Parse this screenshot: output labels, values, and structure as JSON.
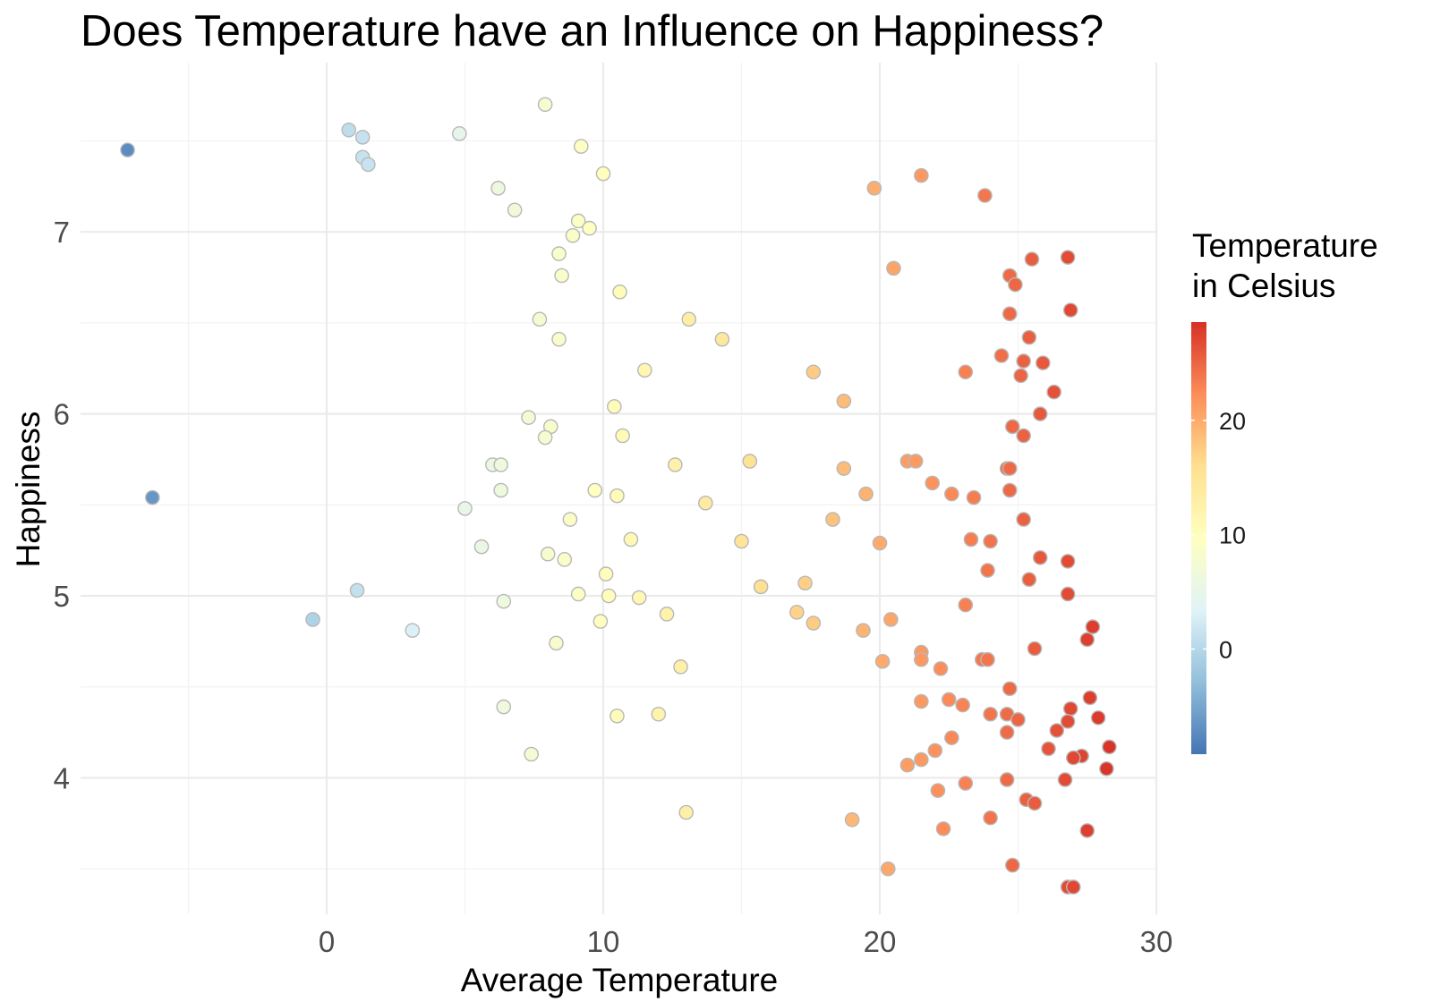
{
  "chart_data": {
    "type": "scatter",
    "title": "Does Temperature have an Influence on Happiness?",
    "xlabel": "Average Temperature",
    "ylabel": "Happiness",
    "xlim": [
      -8.9,
      30
    ],
    "ylim": [
      3.25,
      7.93
    ],
    "x_ticks": [
      0,
      10,
      20,
      30
    ],
    "y_ticks": [
      4,
      5,
      6,
      7
    ],
    "grid": true,
    "legend": {
      "title_lines": [
        "Temperature",
        "in Celsius"
      ],
      "placement": "right",
      "type": "colorbar",
      "range": [
        -9.2,
        28.6
      ],
      "ticks": [
        0,
        10,
        20
      ],
      "colors": [
        "#4575b4",
        "#91bfdb",
        "#e0f3f8",
        "#ffffbf",
        "#fee090",
        "#fc8d59",
        "#d73027"
      ]
    },
    "points": [
      [
        -7.2,
        7.45
      ],
      [
        -6.3,
        5.54
      ],
      [
        -0.5,
        4.87
      ],
      [
        0.8,
        7.56
      ],
      [
        1.3,
        7.52
      ],
      [
        1.3,
        7.41
      ],
      [
        1.5,
        7.37
      ],
      [
        1.1,
        5.03
      ],
      [
        3.1,
        4.81
      ],
      [
        4.8,
        7.54
      ],
      [
        7.9,
        7.7
      ],
      [
        9.2,
        7.47
      ],
      [
        10.0,
        7.32
      ],
      [
        6.2,
        7.24
      ],
      [
        6.8,
        7.12
      ],
      [
        9.1,
        7.06
      ],
      [
        9.5,
        7.02
      ],
      [
        8.9,
        6.98
      ],
      [
        8.4,
        6.88
      ],
      [
        8.5,
        6.76
      ],
      [
        10.6,
        6.67
      ],
      [
        7.7,
        6.52
      ],
      [
        8.4,
        6.41
      ],
      [
        13.1,
        6.52
      ],
      [
        14.3,
        6.41
      ],
      [
        11.5,
        6.24
      ],
      [
        17.6,
        6.23
      ],
      [
        18.7,
        6.07
      ],
      [
        10.4,
        6.04
      ],
      [
        7.3,
        5.98
      ],
      [
        8.1,
        5.93
      ],
      [
        7.9,
        5.87
      ],
      [
        10.7,
        5.88
      ],
      [
        6.0,
        5.72
      ],
      [
        6.3,
        5.72
      ],
      [
        12.6,
        5.72
      ],
      [
        15.3,
        5.74
      ],
      [
        18.7,
        5.7
      ],
      [
        21.0,
        5.74
      ],
      [
        21.3,
        5.74
      ],
      [
        6.3,
        5.58
      ],
      [
        9.7,
        5.58
      ],
      [
        10.5,
        5.55
      ],
      [
        13.7,
        5.51
      ],
      [
        5.0,
        5.48
      ],
      [
        8.8,
        5.42
      ],
      [
        19.5,
        5.56
      ],
      [
        21.9,
        5.62
      ],
      [
        22.6,
        5.56
      ],
      [
        23.4,
        5.54
      ],
      [
        18.3,
        5.42
      ],
      [
        5.6,
        5.27
      ],
      [
        8.0,
        5.23
      ],
      [
        8.6,
        5.2
      ],
      [
        11.0,
        5.31
      ],
      [
        15.0,
        5.3
      ],
      [
        20.0,
        5.29
      ],
      [
        23.3,
        5.31
      ],
      [
        24.0,
        5.3
      ],
      [
        23.9,
        5.14
      ],
      [
        10.1,
        5.12
      ],
      [
        6.4,
        4.97
      ],
      [
        9.1,
        5.01
      ],
      [
        10.2,
        5.0
      ],
      [
        11.3,
        4.99
      ],
      [
        9.9,
        4.86
      ],
      [
        12.3,
        4.9
      ],
      [
        15.7,
        5.05
      ],
      [
        17.3,
        5.07
      ],
      [
        17.0,
        4.91
      ],
      [
        17.6,
        4.85
      ],
      [
        20.4,
        4.87
      ],
      [
        23.1,
        4.95
      ],
      [
        8.3,
        4.74
      ],
      [
        19.4,
        4.81
      ],
      [
        20.1,
        4.64
      ],
      [
        21.5,
        4.69
      ],
      [
        21.5,
        4.65
      ],
      [
        22.2,
        4.6
      ],
      [
        23.7,
        4.65
      ],
      [
        23.9,
        4.65
      ],
      [
        12.8,
        4.61
      ],
      [
        6.4,
        4.39
      ],
      [
        10.5,
        4.34
      ],
      [
        12.0,
        4.35
      ],
      [
        7.4,
        4.13
      ],
      [
        21.5,
        4.42
      ],
      [
        22.5,
        4.43
      ],
      [
        23.0,
        4.4
      ],
      [
        24.7,
        4.49
      ],
      [
        24.0,
        4.35
      ],
      [
        24.6,
        4.35
      ],
      [
        25.0,
        4.32
      ],
      [
        22.6,
        4.22
      ],
      [
        21.5,
        4.1
      ],
      [
        22.0,
        4.15
      ],
      [
        21.0,
        4.07
      ],
      [
        24.6,
        4.25
      ],
      [
        22.1,
        3.93
      ],
      [
        23.1,
        3.97
      ],
      [
        24.6,
        3.99
      ],
      [
        22.3,
        3.72
      ],
      [
        24.0,
        3.78
      ],
      [
        13.0,
        3.81
      ],
      [
        19.0,
        3.77
      ],
      [
        20.3,
        3.5
      ],
      [
        24.8,
        3.52
      ],
      [
        25.3,
        3.88
      ],
      [
        25.6,
        3.86
      ],
      [
        25.5,
        6.85
      ],
      [
        24.7,
        6.76
      ],
      [
        24.9,
        6.71
      ],
      [
        24.7,
        6.55
      ],
      [
        25.4,
        6.42
      ],
      [
        24.4,
        6.32
      ],
      [
        25.2,
        6.29
      ],
      [
        25.1,
        6.21
      ],
      [
        25.9,
        6.28
      ],
      [
        23.1,
        6.23
      ],
      [
        26.3,
        6.12
      ],
      [
        25.8,
        6.0
      ],
      [
        24.8,
        5.93
      ],
      [
        25.2,
        5.88
      ],
      [
        24.6,
        5.7
      ],
      [
        24.7,
        5.58
      ],
      [
        25.2,
        5.42
      ],
      [
        25.8,
        5.21
      ],
      [
        25.4,
        5.09
      ],
      [
        24.7,
        5.7
      ],
      [
        26.8,
        6.86
      ],
      [
        26.9,
        6.57
      ],
      [
        26.8,
        5.19
      ],
      [
        26.8,
        5.01
      ],
      [
        26.9,
        4.38
      ],
      [
        26.8,
        4.31
      ],
      [
        26.4,
        4.26
      ],
      [
        26.1,
        4.16
      ],
      [
        26.7,
        3.99
      ],
      [
        27.5,
        4.76
      ],
      [
        27.7,
        4.83
      ],
      [
        27.6,
        4.44
      ],
      [
        27.9,
        4.33
      ],
      [
        28.3,
        4.17
      ],
      [
        27.3,
        4.12
      ],
      [
        27.0,
        4.11
      ],
      [
        28.2,
        4.05
      ],
      [
        27.5,
        3.71
      ],
      [
        26.8,
        3.4
      ],
      [
        27.0,
        3.4
      ],
      [
        25.6,
        4.71
      ],
      [
        20.5,
        6.8
      ],
      [
        19.8,
        7.24
      ],
      [
        21.5,
        7.31
      ],
      [
        23.8,
        7.2
      ]
    ]
  }
}
